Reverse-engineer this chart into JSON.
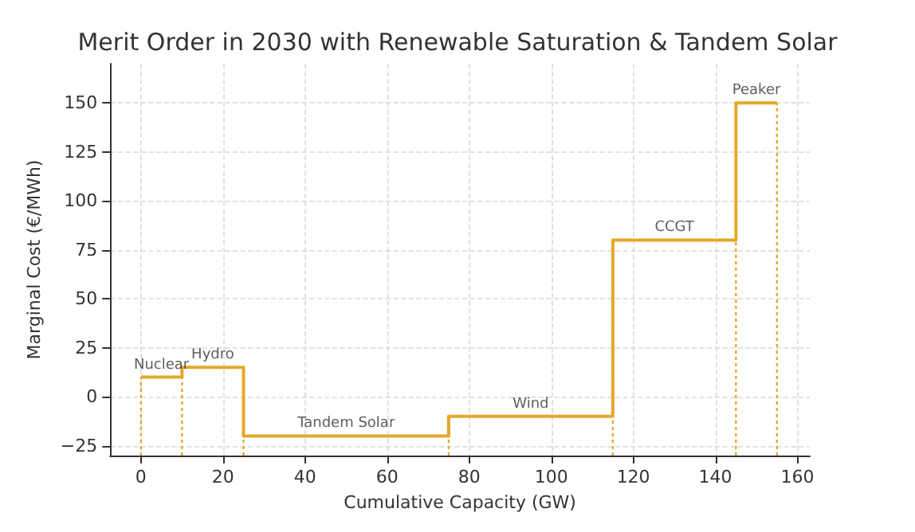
{
  "chart_data": {
    "type": "step",
    "title": "Merit Order in 2030 with Renewable Saturation & Tandem Solar",
    "xlabel": "Cumulative Capacity (GW)",
    "ylabel": "Marginal Cost (€/MWh)",
    "x": [
      0,
      10,
      25,
      75,
      115,
      145,
      155
    ],
    "series": [
      {
        "color": "#e3a92b",
        "values": [
          10,
          15,
          -20,
          -10,
          80,
          150,
          150
        ]
      }
    ],
    "ref_lines": [
      {
        "axis": "x",
        "value": 0,
        "color": "#e3a92b",
        "line_style": "dotted"
      },
      {
        "axis": "x",
        "value": 10,
        "color": "#e3a92b",
        "line_style": "dotted"
      },
      {
        "axis": "x",
        "value": 25,
        "color": "#e3a92b",
        "line_style": "dotted"
      },
      {
        "axis": "x",
        "value": 75,
        "color": "#e3a92b",
        "line_style": "dotted"
      },
      {
        "axis": "x",
        "value": 115,
        "color": "#e3a92b",
        "line_style": "dotted"
      },
      {
        "axis": "x",
        "value": 145,
        "color": "#e3a92b",
        "line_style": "dotted"
      },
      {
        "axis": "x",
        "value": 155,
        "color": "#e3a92b",
        "line_style": "dotted"
      }
    ],
    "annotations": [
      {
        "text": "Nuclear",
        "x": 5,
        "y": 10
      },
      {
        "text": "Hydro",
        "x": 17.5,
        "y": 15
      },
      {
        "text": "Tandem Solar",
        "x": 50,
        "y": -20
      },
      {
        "text": "Wind",
        "x": 95,
        "y": -10
      },
      {
        "text": "CCGT",
        "x": 130,
        "y": 80
      },
      {
        "text": "Peaker",
        "x": 150,
        "y": 150
      }
    ],
    "xlim": [
      -7.5,
      163
    ],
    "ylim": [
      -30,
      170
    ],
    "xticks": [
      0,
      20,
      40,
      60,
      80,
      100,
      120,
      140,
      160
    ],
    "yticks": [
      -25,
      0,
      25,
      50,
      75,
      100,
      125,
      150
    ],
    "grid": true,
    "marker": "none",
    "line_style": "solid"
  }
}
